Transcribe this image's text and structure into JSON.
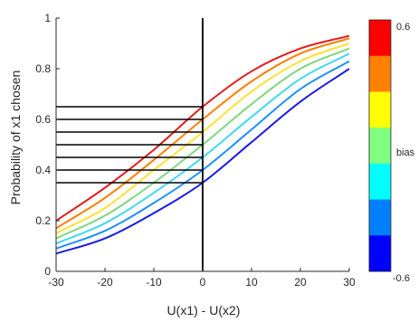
{
  "chart_data": {
    "type": "line",
    "title": "",
    "xlabel": "U(x1) - U(x2)",
    "ylabel": "Probability of x1 chosen",
    "xlim": [
      -30,
      30
    ],
    "ylim": [
      0,
      1
    ],
    "xticks": [
      -30,
      -20,
      -10,
      0,
      10,
      20,
      30
    ],
    "yticks": [
      0,
      0.2,
      0.4,
      0.6,
      0.8,
      1
    ],
    "xtick_labels": [
      "-30",
      "-20",
      "-10",
      "0",
      "10",
      "20",
      "30"
    ],
    "ytick_labels": [
      "0",
      "0.2",
      "0.4",
      "0.6",
      "0.8",
      "1"
    ],
    "grid": false,
    "series": [
      {
        "color": "#e41a1c",
        "x": [
          -30,
          -20,
          -10,
          0,
          10,
          20,
          30
        ],
        "y": [
          0.2,
          0.33,
          0.48,
          0.65,
          0.79,
          0.88,
          0.93
        ]
      },
      {
        "color": "#ff7f00",
        "x": [
          -30,
          -20,
          -10,
          0,
          10,
          20,
          30
        ],
        "y": [
          0.17,
          0.29,
          0.44,
          0.6,
          0.75,
          0.86,
          0.92
        ]
      },
      {
        "color": "#ffe135",
        "x": [
          -30,
          -20,
          -10,
          0,
          10,
          20,
          30
        ],
        "y": [
          0.15,
          0.25,
          0.4,
          0.55,
          0.71,
          0.83,
          0.9
        ]
      },
      {
        "color": "#7fd67f",
        "x": [
          -30,
          -20,
          -10,
          0,
          10,
          20,
          30
        ],
        "y": [
          0.13,
          0.22,
          0.35,
          0.5,
          0.66,
          0.8,
          0.88
        ]
      },
      {
        "color": "#3fd8f0",
        "x": [
          -30,
          -20,
          -10,
          0,
          10,
          20,
          30
        ],
        "y": [
          0.11,
          0.19,
          0.31,
          0.45,
          0.61,
          0.76,
          0.86
        ]
      },
      {
        "color": "#1e90ff",
        "x": [
          -30,
          -20,
          -10,
          0,
          10,
          20,
          30
        ],
        "y": [
          0.09,
          0.16,
          0.27,
          0.4,
          0.56,
          0.72,
          0.83
        ]
      },
      {
        "color": "#1a1ae6",
        "x": [
          -30,
          -20,
          -10,
          0,
          10,
          20,
          30
        ],
        "y": [
          0.07,
          0.13,
          0.23,
          0.35,
          0.51,
          0.67,
          0.8
        ]
      }
    ],
    "reference_lines": {
      "vertical_x": 0,
      "horizontal_y": [
        0.65,
        0.6,
        0.55,
        0.5,
        0.45,
        0.4,
        0.35
      ],
      "horizontal_from_x": -30,
      "color": "#000000"
    },
    "colorbar": {
      "label": "bias",
      "min": -0.6,
      "max": 0.6,
      "min_label": "-0.6",
      "max_label": "0.6",
      "colors": [
        "#ff0000",
        "#ff7f00",
        "#ffff00",
        "#80ff80",
        "#00ffff",
        "#0080ff",
        "#0000ff"
      ]
    }
  }
}
